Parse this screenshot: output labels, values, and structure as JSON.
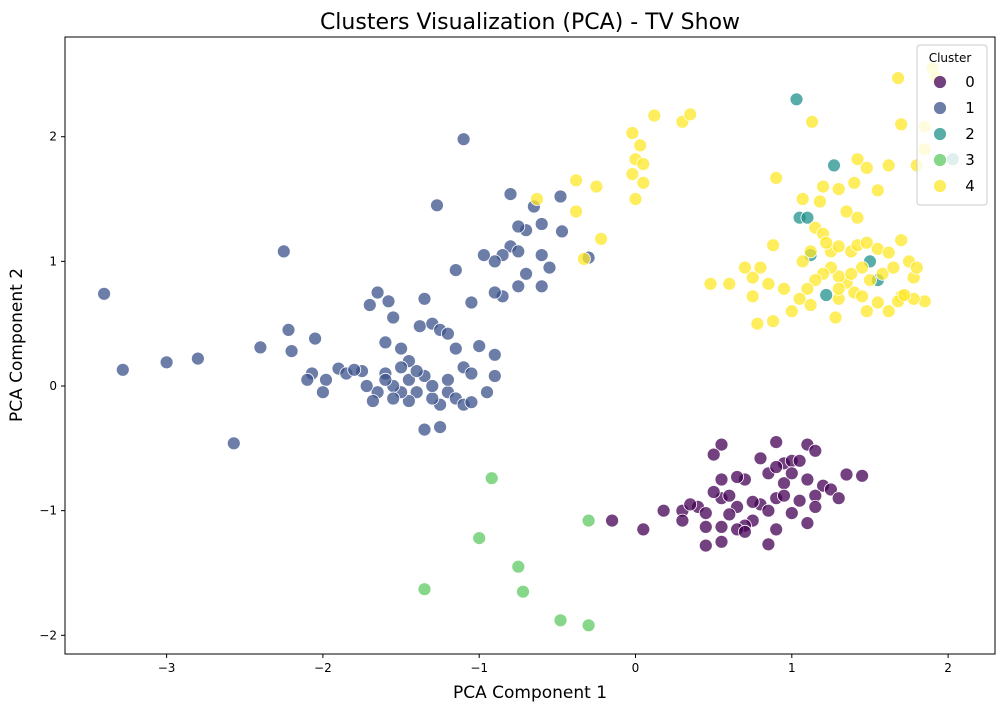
{
  "chart_data": {
    "type": "scatter",
    "title": "Clusters Visualization (PCA) - TV Show",
    "xlabel": "PCA Component 1",
    "ylabel": "PCA Component 2",
    "xlim": [
      -3.65,
      2.3
    ],
    "ylim": [
      -2.15,
      2.8
    ],
    "xticks": [
      -3,
      -2,
      -1,
      0,
      1,
      2
    ],
    "yticks": [
      -2,
      -1,
      0,
      1,
      2
    ],
    "grid": false,
    "legend": {
      "title": "Cluster",
      "placement": "top-right"
    },
    "series": [
      {
        "name": "0",
        "color": "#440154",
        "points": [
          [
            0.55,
            -0.47
          ],
          [
            0.9,
            -0.45
          ],
          [
            1.1,
            -0.47
          ],
          [
            1.15,
            -0.52
          ],
          [
            1.45,
            -0.72
          ],
          [
            1.35,
            -0.71
          ],
          [
            0.5,
            -0.55
          ],
          [
            0.8,
            -0.58
          ],
          [
            0.95,
            -0.62
          ],
          [
            1.0,
            -0.6
          ],
          [
            1.05,
            -0.6
          ],
          [
            0.85,
            -0.7
          ],
          [
            0.7,
            -0.75
          ],
          [
            0.55,
            -0.75
          ],
          [
            0.9,
            -0.65
          ],
          [
            1.2,
            -0.8
          ],
          [
            1.25,
            -0.83
          ],
          [
            1.15,
            -0.88
          ],
          [
            1.05,
            -0.92
          ],
          [
            0.95,
            -0.78
          ],
          [
            0.9,
            -0.9
          ],
          [
            0.8,
            -0.95
          ],
          [
            0.65,
            -0.97
          ],
          [
            0.55,
            -0.9
          ],
          [
            0.5,
            -0.85
          ],
          [
            0.4,
            -0.97
          ],
          [
            0.3,
            -1.0
          ],
          [
            0.35,
            -0.95
          ],
          [
            0.18,
            -1.0
          ],
          [
            0.3,
            -1.08
          ],
          [
            0.45,
            -1.02
          ],
          [
            0.6,
            -1.03
          ],
          [
            0.75,
            -1.08
          ],
          [
            0.85,
            -1.0
          ],
          [
            1.0,
            -1.02
          ],
          [
            1.1,
            -1.1
          ],
          [
            0.9,
            -1.15
          ],
          [
            0.7,
            -1.12
          ],
          [
            0.65,
            -1.15
          ],
          [
            0.55,
            -1.13
          ],
          [
            0.45,
            -1.13
          ],
          [
            0.7,
            -1.17
          ],
          [
            0.55,
            -1.25
          ],
          [
            0.45,
            -1.28
          ],
          [
            0.85,
            -1.27
          ],
          [
            0.05,
            -1.15
          ],
          [
            -0.15,
            -1.08
          ],
          [
            1.3,
            -0.9
          ],
          [
            1.1,
            -0.75
          ],
          [
            1.0,
            -0.7
          ],
          [
            0.65,
            -0.73
          ],
          [
            0.75,
            -0.93
          ],
          [
            1.15,
            -0.97
          ],
          [
            0.6,
            -0.88
          ],
          [
            0.95,
            -0.88
          ]
        ]
      },
      {
        "name": "1",
        "color": "#3b528b",
        "points": [
          [
            -1.1,
            1.98
          ],
          [
            -1.27,
            1.45
          ],
          [
            -0.8,
            1.54
          ],
          [
            -0.65,
            1.44
          ],
          [
            -0.48,
            1.52
          ],
          [
            -0.6,
            1.3
          ],
          [
            -0.47,
            1.24
          ],
          [
            -0.7,
            1.25
          ],
          [
            -0.75,
            1.28
          ],
          [
            -0.8,
            1.12
          ],
          [
            -0.85,
            1.05
          ],
          [
            -0.9,
            1.0
          ],
          [
            -0.97,
            1.05
          ],
          [
            -0.75,
            1.08
          ],
          [
            -0.7,
            0.9
          ],
          [
            -0.6,
            1.05
          ],
          [
            -0.55,
            0.95
          ],
          [
            -0.6,
            0.8
          ],
          [
            -0.3,
            1.03
          ],
          [
            -0.75,
            0.8
          ],
          [
            -0.85,
            0.72
          ],
          [
            -0.9,
            0.75
          ],
          [
            -1.05,
            0.67
          ],
          [
            -1.15,
            0.93
          ],
          [
            -2.25,
            1.08
          ],
          [
            -3.4,
            0.74
          ],
          [
            -3.28,
            0.13
          ],
          [
            -3.0,
            0.19
          ],
          [
            -2.8,
            0.22
          ],
          [
            -2.57,
            -0.46
          ],
          [
            -2.4,
            0.31
          ],
          [
            -2.22,
            0.45
          ],
          [
            -2.2,
            0.28
          ],
          [
            -2.05,
            0.38
          ],
          [
            -2.07,
            0.1
          ],
          [
            -2.1,
            0.05
          ],
          [
            -1.98,
            0.05
          ],
          [
            -1.9,
            0.14
          ],
          [
            -1.85,
            0.1
          ],
          [
            -2.0,
            -0.05
          ],
          [
            -1.75,
            0.12
          ],
          [
            -1.7,
            0.65
          ],
          [
            -1.65,
            0.75
          ],
          [
            -1.58,
            0.68
          ],
          [
            -1.55,
            0.55
          ],
          [
            -1.6,
            0.35
          ],
          [
            -1.5,
            0.3
          ],
          [
            -1.45,
            0.2
          ],
          [
            -1.38,
            0.48
          ],
          [
            -1.35,
            0.7
          ],
          [
            -1.3,
            0.5
          ],
          [
            -1.25,
            0.45
          ],
          [
            -1.2,
            0.42
          ],
          [
            -1.15,
            0.3
          ],
          [
            -1.1,
            0.15
          ],
          [
            -1.05,
            0.1
          ],
          [
            -1.0,
            0.32
          ],
          [
            -0.9,
            0.25
          ],
          [
            -0.9,
            0.08
          ],
          [
            -0.95,
            -0.05
          ],
          [
            -1.2,
            -0.05
          ],
          [
            -1.25,
            -0.15
          ],
          [
            -1.3,
            -0.1
          ],
          [
            -1.35,
            -0.35
          ],
          [
            -1.25,
            -0.33
          ],
          [
            -1.4,
            -0.05
          ],
          [
            -1.45,
            -0.12
          ],
          [
            -1.5,
            -0.05
          ],
          [
            -1.55,
            0.0
          ],
          [
            -1.6,
            0.1
          ],
          [
            -1.65,
            -0.05
          ],
          [
            -1.72,
            0.0
          ],
          [
            -1.68,
            -0.12
          ],
          [
            -1.55,
            -0.1
          ],
          [
            -1.45,
            0.05
          ],
          [
            -1.35,
            0.08
          ],
          [
            -1.3,
            0.0
          ],
          [
            -1.2,
            0.05
          ],
          [
            -1.15,
            -0.1
          ],
          [
            -1.1,
            -0.15
          ],
          [
            -1.05,
            -0.13
          ],
          [
            -1.5,
            0.15
          ],
          [
            -1.4,
            0.12
          ],
          [
            -1.6,
            0.05
          ],
          [
            -1.8,
            0.13
          ]
        ]
      },
      {
        "name": "2",
        "color": "#21918c",
        "points": [
          [
            1.03,
            2.3
          ],
          [
            1.27,
            1.77
          ],
          [
            2.03,
            1.82
          ],
          [
            1.05,
            1.35
          ],
          [
            1.1,
            1.35
          ],
          [
            1.12,
            1.05
          ],
          [
            1.5,
            1.0
          ],
          [
            1.55,
            0.85
          ],
          [
            1.22,
            0.73
          ]
        ]
      },
      {
        "name": "3",
        "color": "#5ec962",
        "points": [
          [
            -0.92,
            -0.74
          ],
          [
            -0.3,
            -1.08
          ],
          [
            -1.0,
            -1.22
          ],
          [
            -0.75,
            -1.45
          ],
          [
            -0.72,
            -1.65
          ],
          [
            -1.35,
            -1.63
          ],
          [
            -0.48,
            -1.88
          ],
          [
            -0.3,
            -1.92
          ]
        ]
      },
      {
        "name": "4",
        "color": "#fde725",
        "points": [
          [
            -0.02,
            2.03
          ],
          [
            0.0,
            1.82
          ],
          [
            0.03,
            1.93
          ],
          [
            0.05,
            1.78
          ],
          [
            -0.02,
            1.7
          ],
          [
            0.05,
            1.63
          ],
          [
            0.0,
            1.5
          ],
          [
            0.12,
            2.17
          ],
          [
            0.3,
            2.12
          ],
          [
            0.35,
            2.18
          ],
          [
            -0.38,
            1.65
          ],
          [
            -0.25,
            1.6
          ],
          [
            -0.38,
            1.4
          ],
          [
            -0.63,
            1.5
          ],
          [
            -0.22,
            1.18
          ],
          [
            -0.33,
            1.02
          ],
          [
            1.68,
            2.47
          ],
          [
            1.9,
            2.55
          ],
          [
            1.92,
            2.48
          ],
          [
            1.85,
            2.08
          ],
          [
            1.7,
            2.1
          ],
          [
            1.13,
            2.12
          ],
          [
            0.9,
            1.67
          ],
          [
            1.07,
            1.5
          ],
          [
            1.18,
            1.48
          ],
          [
            1.2,
            1.6
          ],
          [
            1.3,
            1.58
          ],
          [
            1.4,
            1.63
          ],
          [
            1.42,
            1.82
          ],
          [
            1.48,
            1.75
          ],
          [
            1.55,
            1.57
          ],
          [
            1.62,
            1.77
          ],
          [
            1.8,
            1.77
          ],
          [
            1.85,
            1.9
          ],
          [
            1.35,
            1.4
          ],
          [
            1.42,
            1.35
          ],
          [
            1.15,
            1.27
          ],
          [
            1.2,
            1.22
          ],
          [
            1.25,
            1.08
          ],
          [
            1.3,
            1.12
          ],
          [
            1.38,
            1.08
          ],
          [
            1.42,
            1.13
          ],
          [
            1.48,
            1.15
          ],
          [
            1.55,
            1.1
          ],
          [
            1.62,
            1.07
          ],
          [
            1.7,
            1.17
          ],
          [
            1.75,
            1.0
          ],
          [
            1.78,
            0.87
          ],
          [
            1.8,
            0.95
          ],
          [
            1.85,
            0.68
          ],
          [
            1.78,
            0.7
          ],
          [
            1.7,
            0.72
          ],
          [
            1.62,
            0.6
          ],
          [
            1.55,
            0.67
          ],
          [
            1.48,
            0.6
          ],
          [
            1.4,
            0.75
          ],
          [
            1.35,
            0.83
          ],
          [
            1.3,
            0.88
          ],
          [
            1.25,
            0.95
          ],
          [
            1.2,
            0.9
          ],
          [
            1.15,
            0.85
          ],
          [
            1.1,
            0.78
          ],
          [
            1.05,
            0.7
          ],
          [
            1.0,
            0.6
          ],
          [
            0.95,
            0.78
          ],
          [
            0.88,
            1.13
          ],
          [
            0.85,
            0.82
          ],
          [
            0.8,
            0.95
          ],
          [
            0.75,
            0.87
          ],
          [
            0.7,
            0.95
          ],
          [
            0.6,
            0.82
          ],
          [
            0.75,
            0.72
          ],
          [
            0.78,
            0.5
          ],
          [
            0.88,
            0.52
          ],
          [
            0.48,
            0.82
          ],
          [
            1.07,
            1.0
          ],
          [
            1.12,
            0.65
          ],
          [
            1.28,
            0.55
          ],
          [
            1.3,
            0.7
          ],
          [
            1.45,
            0.72
          ],
          [
            1.5,
            0.85
          ],
          [
            1.58,
            0.9
          ],
          [
            1.65,
            0.95
          ],
          [
            1.68,
            0.68
          ],
          [
            1.72,
            0.73
          ],
          [
            1.45,
            0.95
          ],
          [
            1.38,
            0.9
          ],
          [
            1.12,
            1.08
          ],
          [
            1.3,
            0.78
          ],
          [
            1.22,
            1.15
          ]
        ]
      }
    ]
  }
}
